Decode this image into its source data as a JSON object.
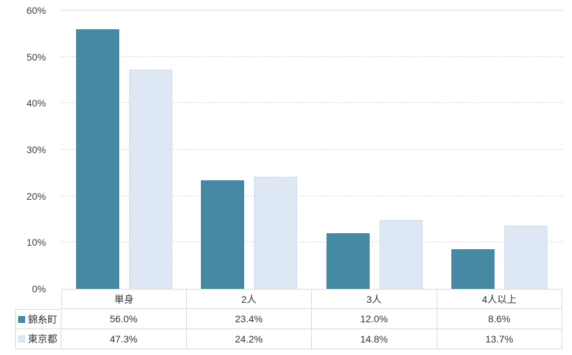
{
  "chart_data": {
    "type": "bar",
    "title": "",
    "xlabel": "",
    "ylabel": "",
    "categories": [
      "単身",
      "2人",
      "3人",
      "4人以上"
    ],
    "series": [
      {
        "name": "錦糸町",
        "color": "#4589a3",
        "values": [
          56.0,
          23.4,
          12.0,
          8.6
        ],
        "value_labels": [
          "56.0%",
          "23.4%",
          "12.0%",
          "8.6%"
        ]
      },
      {
        "name": "東京都",
        "color": "#dde8f4",
        "values": [
          47.3,
          24.2,
          14.8,
          13.7
        ],
        "value_labels": [
          "47.3%",
          "24.2%",
          "14.8%",
          "13.7%"
        ]
      }
    ],
    "ylim": [
      0,
      60
    ],
    "yticks": [
      0,
      10,
      20,
      30,
      40,
      50,
      60
    ],
    "ytick_labels": [
      "0%",
      "10%",
      "20%",
      "30%",
      "40%",
      "50%",
      "60%"
    ],
    "grid": true,
    "gridline_style": "dashed-horizontal",
    "legend_position": "data-table-left-column"
  },
  "colors": {
    "series_kinshicho": "#4589a3",
    "series_tokyo": "#dde8f4",
    "gridline": "#d9d9d9",
    "table_border": "#d9d9d9",
    "axis_text": "#404040",
    "table_text": "#333333",
    "background": "#ffffff"
  }
}
